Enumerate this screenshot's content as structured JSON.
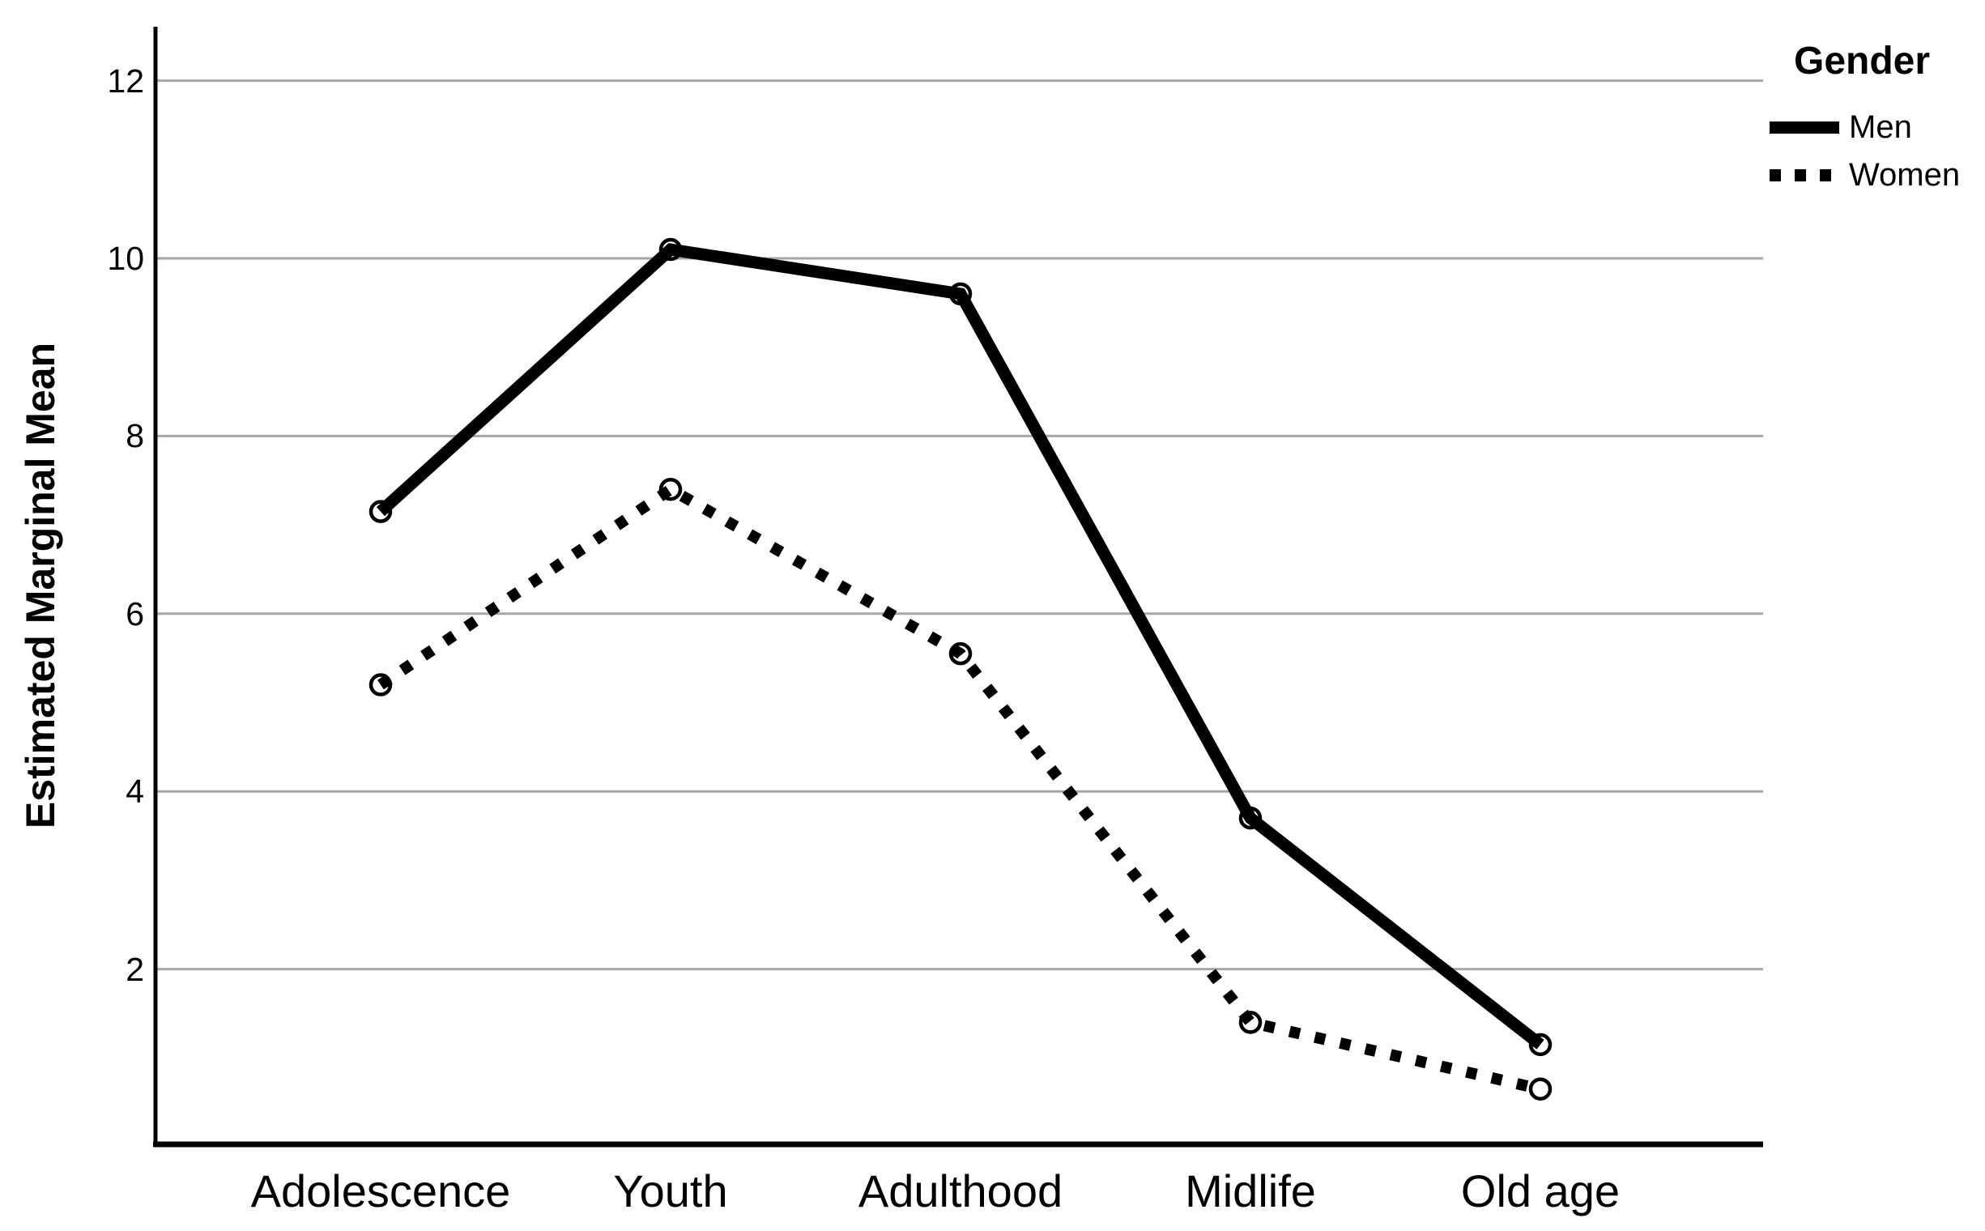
{
  "chart_data": {
    "type": "line",
    "title": "",
    "categories": [
      "Adolescence",
      "Youth",
      "Adulthood",
      "Midlife",
      "Old age"
    ],
    "series": [
      {
        "name": "Men",
        "line_style": "solid",
        "values": [
          7.15,
          10.1,
          9.6,
          3.7,
          1.15
        ]
      },
      {
        "name": "Women",
        "line_style": "dotted",
        "values": [
          5.2,
          7.4,
          5.55,
          1.4,
          0.65
        ]
      }
    ],
    "xlabel": "",
    "ylabel": "Estimated Marginal Mean",
    "y_ticks": [
      2,
      4,
      6,
      8,
      10,
      12
    ],
    "ylim": [
      0,
      12.6
    ],
    "grid": "horizontal",
    "marker": "open-circle",
    "legend_title": "Gender",
    "legend_position": "top-right"
  },
  "colors": {
    "series": "#000000",
    "gridline": "#a6a6a6",
    "axis": "#000000",
    "background": "#ffffff",
    "text": "#000000"
  }
}
